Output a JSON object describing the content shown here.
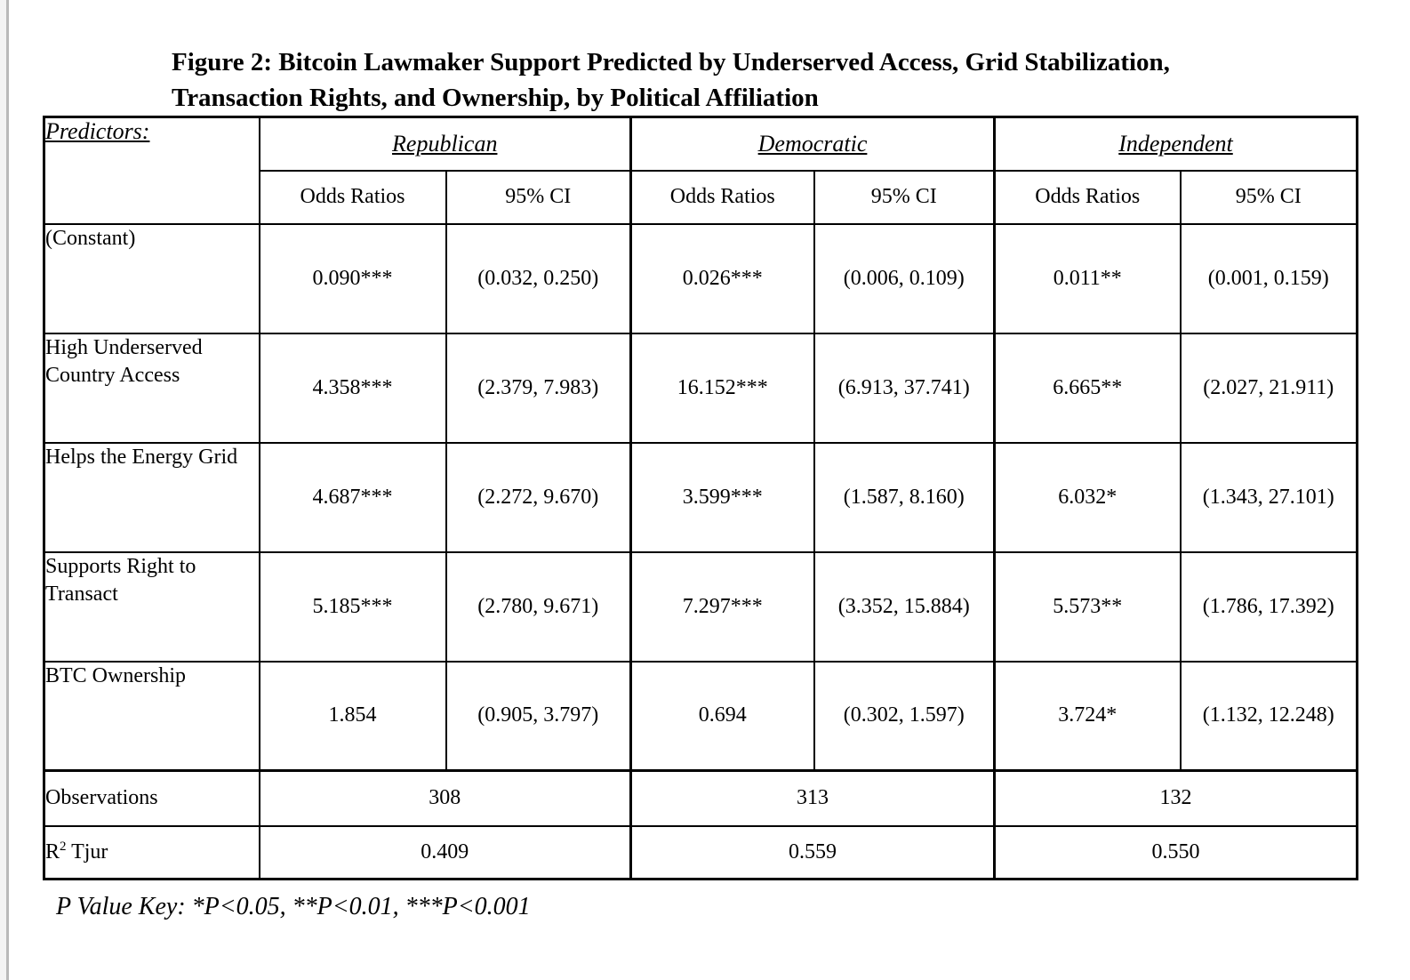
{
  "title": {
    "line1": "Figure 2: Bitcoin Lawmaker Support Predicted by Underserved Access, Grid Stabilization,",
    "line2": "Transaction Rights, and Ownership, by Political Affiliation"
  },
  "table": {
    "predictors_label": "Predictors:",
    "groups": [
      {
        "name": "Republican"
      },
      {
        "name": "Democratic"
      },
      {
        "name": "Independent"
      }
    ],
    "subheaders": {
      "odds": "Odds Ratios",
      "ci": "95% CI"
    },
    "rows": [
      {
        "label": "(Constant)",
        "cells": [
          "0.090***",
          "(0.032, 0.250)",
          "0.026***",
          "(0.006, 0.109)",
          "0.011**",
          "(0.001, 0.159)"
        ]
      },
      {
        "label": "High Underserved Country Access",
        "cells": [
          "4.358***",
          "(2.379, 7.983)",
          "16.152***",
          "(6.913, 37.741)",
          "6.665**",
          "(2.027, 21.911)"
        ]
      },
      {
        "label": "Helps the Energy Grid",
        "cells": [
          "4.687***",
          "(2.272, 9.670)",
          "3.599***",
          "(1.587, 8.160)",
          "6.032*",
          "(1.343, 27.101)"
        ]
      },
      {
        "label": "Supports Right to Transact",
        "cells": [
          "5.185***",
          "(2.780, 9.671)",
          "7.297***",
          "(3.352, 15.884)",
          "5.573**",
          "(1.786, 17.392)"
        ]
      },
      {
        "label": "BTC Ownership",
        "cells": [
          "1.854",
          "(0.905, 3.797)",
          "0.694",
          "(0.302, 1.597)",
          "3.724*",
          "(1.132, 12.248)"
        ]
      }
    ],
    "observations": {
      "label": "Observations",
      "values": [
        "308",
        "313",
        "132"
      ]
    },
    "r2": {
      "label_base": "R",
      "label_sup": "2",
      "label_rest": " Tjur",
      "values": [
        "0.409",
        "0.559",
        "0.550"
      ]
    }
  },
  "footer": {
    "p_value_key": "P Value Key: *P<0.05, **P<0.01, ***P<0.001"
  },
  "colors": {
    "text": "#000000",
    "border": "#000000",
    "background": "#ffffff",
    "edge_line": "#b9b9b9"
  },
  "chart_data": {
    "type": "table",
    "title": "Figure 2: Bitcoin Lawmaker Support Predicted by Underserved Access, Grid Stabilization, Transaction Rights, and Ownership, by Political Affiliation",
    "column_groups": [
      "Republican",
      "Democratic",
      "Independent"
    ],
    "columns": [
      "Odds Ratios",
      "95% CI",
      "Odds Ratios",
      "95% CI",
      "Odds Ratios",
      "95% CI"
    ],
    "row_labels": [
      "(Constant)",
      "High Underserved Country Access",
      "Helps the Energy Grid",
      "Supports Right to Transact",
      "BTC Ownership",
      "Observations",
      "R2 Tjur"
    ],
    "odds_ratios": {
      "Republican": [
        0.09,
        4.358,
        4.687,
        5.185,
        1.854
      ],
      "Democratic": [
        0.026,
        16.152,
        3.599,
        7.297,
        0.694
      ],
      "Independent": [
        0.011,
        6.665,
        6.032,
        5.573,
        3.724
      ]
    },
    "ci_95": {
      "Republican": [
        [
          0.032,
          0.25
        ],
        [
          2.379,
          7.983
        ],
        [
          2.272,
          9.67
        ],
        [
          2.78,
          9.671
        ],
        [
          0.905,
          3.797
        ]
      ],
      "Democratic": [
        [
          0.006,
          0.109
        ],
        [
          6.913,
          37.741
        ],
        [
          1.587,
          8.16
        ],
        [
          3.352,
          15.884
        ],
        [
          0.302,
          1.597
        ]
      ],
      "Independent": [
        [
          0.001,
          0.159
        ],
        [
          2.027,
          21.911
        ],
        [
          1.343,
          27.101
        ],
        [
          1.786,
          17.392
        ],
        [
          1.132,
          12.248
        ]
      ]
    },
    "significance": {
      "Republican": [
        "***",
        "***",
        "***",
        "***",
        ""
      ],
      "Democratic": [
        "***",
        "***",
        "***",
        "***",
        ""
      ],
      "Independent": [
        "**",
        "**",
        "*",
        "**",
        "*"
      ]
    },
    "observations": {
      "Republican": 308,
      "Democratic": 313,
      "Independent": 132
    },
    "r2_tjur": {
      "Republican": 0.409,
      "Democratic": 0.559,
      "Independent": 0.55
    },
    "note": "P Value Key: *P<0.05, **P<0.01, ***P<0.001"
  }
}
